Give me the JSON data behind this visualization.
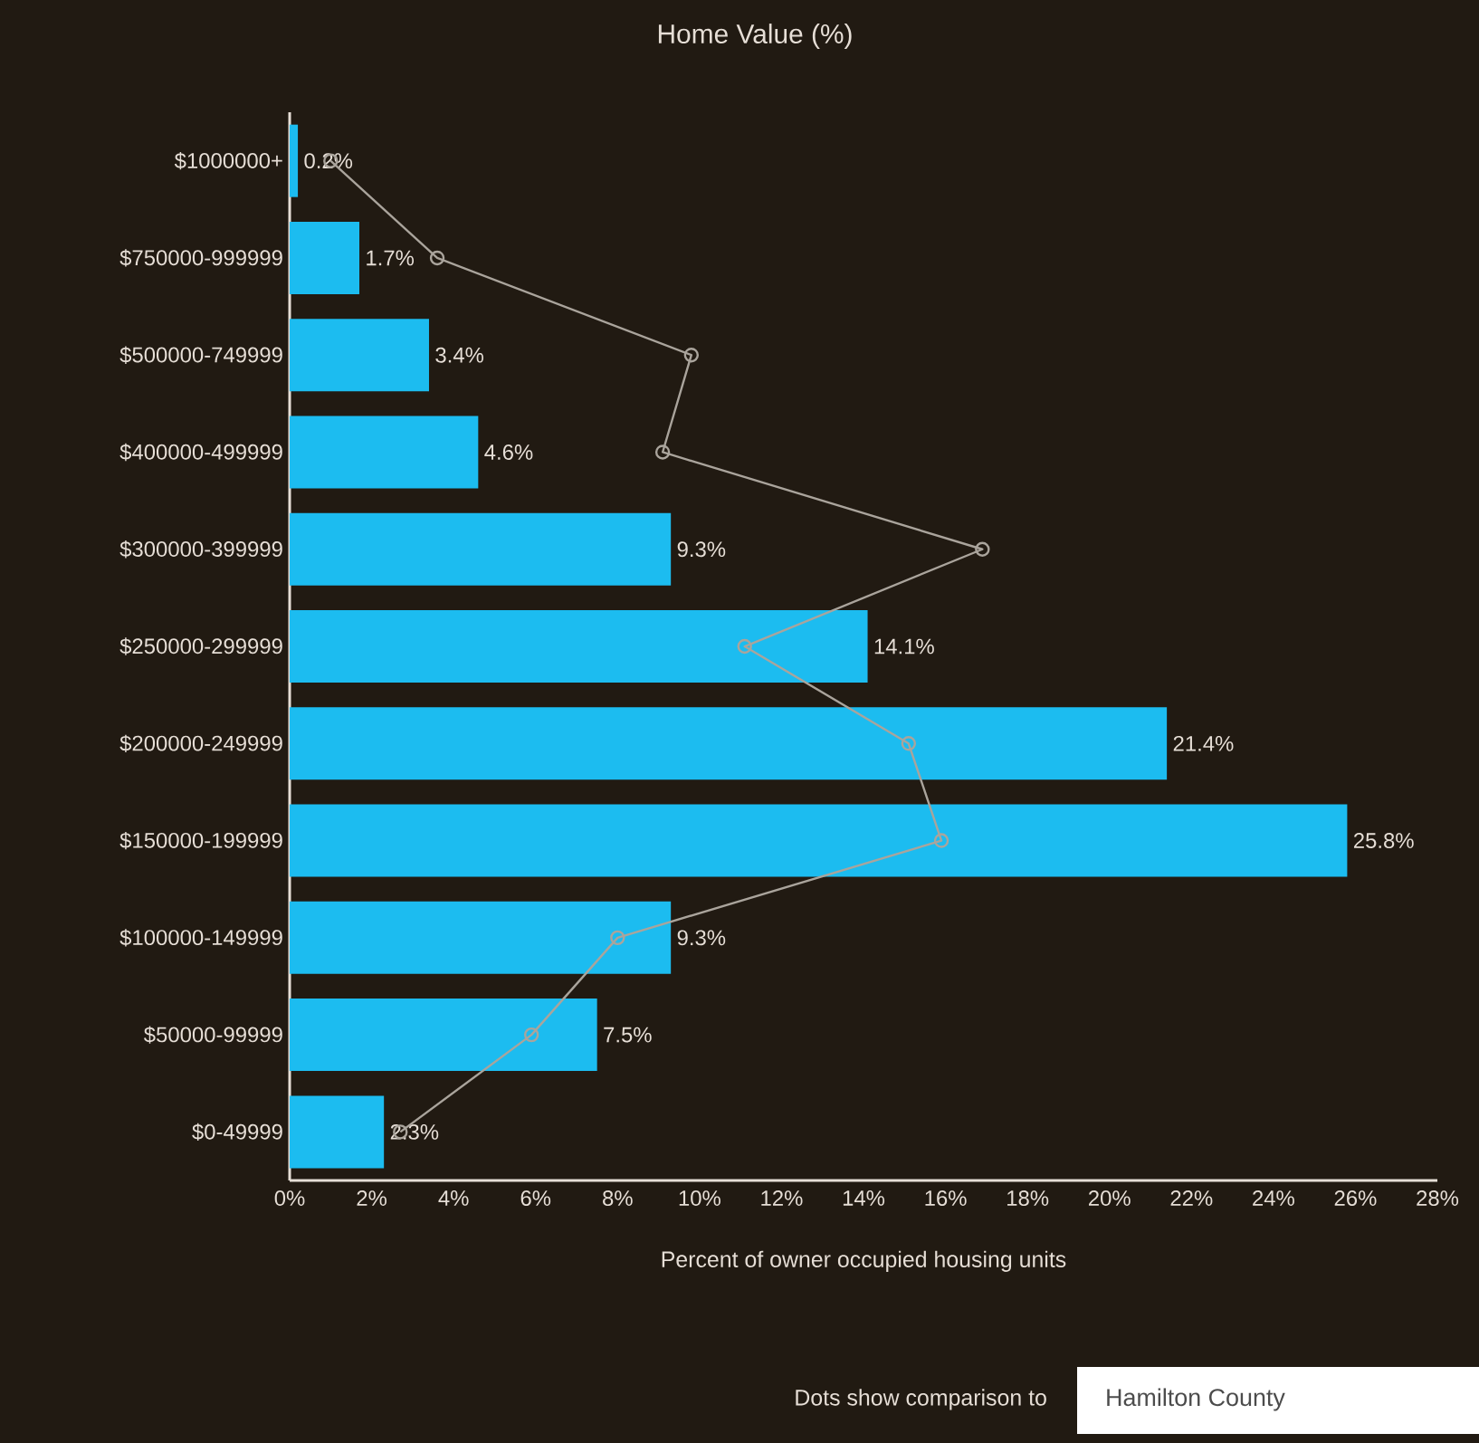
{
  "chart_data": {
    "type": "bar",
    "orientation": "horizontal",
    "title": "Home Value (%)",
    "xlabel": "Percent of owner occupied housing units",
    "categories": [
      "$1000000+",
      "$750000-999999",
      "$500000-749999",
      "$400000-499999",
      "$300000-399999",
      "$250000-299999",
      "$200000-249999",
      "$150000-199999",
      "$100000-149999",
      "$50000-99999",
      "$0-49999"
    ],
    "series": [
      {
        "type": "bar",
        "color": "#1cbcf0",
        "values": [
          0.2,
          1.7,
          3.4,
          4.6,
          9.3,
          14.1,
          21.4,
          25.8,
          9.3,
          7.5,
          2.3
        ],
        "value_labels": [
          "0.2%",
          "1.7%",
          "3.4%",
          "4.6%",
          "9.3%",
          "14.1%",
          "21.4%",
          "25.8%",
          "9.3%",
          "7.5%",
          "2.3%"
        ]
      },
      {
        "type": "line",
        "color": "#aaa49c",
        "marker": "circle",
        "values": [
          1.0,
          3.6,
          9.8,
          9.1,
          16.9,
          11.1,
          15.1,
          15.9,
          8.0,
          5.9,
          2.7
        ]
      }
    ],
    "xlim": [
      0,
      28
    ],
    "xticks": [
      {
        "value": 0,
        "label": "0%"
      },
      {
        "value": 2,
        "label": "2%"
      },
      {
        "value": 4,
        "label": "4%"
      },
      {
        "value": 6,
        "label": "6%"
      },
      {
        "value": 8,
        "label": "8%"
      },
      {
        "value": 10,
        "label": "10%"
      },
      {
        "value": 12,
        "label": "12%"
      },
      {
        "value": 14,
        "label": "14%"
      },
      {
        "value": 16,
        "label": "16%"
      },
      {
        "value": 18,
        "label": "18%"
      },
      {
        "value": 20,
        "label": "20%"
      },
      {
        "value": 22,
        "label": "22%"
      },
      {
        "value": 24,
        "label": "24%"
      },
      {
        "value": 26,
        "label": "26%"
      },
      {
        "value": 28,
        "label": "28%"
      }
    ],
    "annotations": [
      "Dots show comparison to",
      "Hamilton County"
    ]
  }
}
